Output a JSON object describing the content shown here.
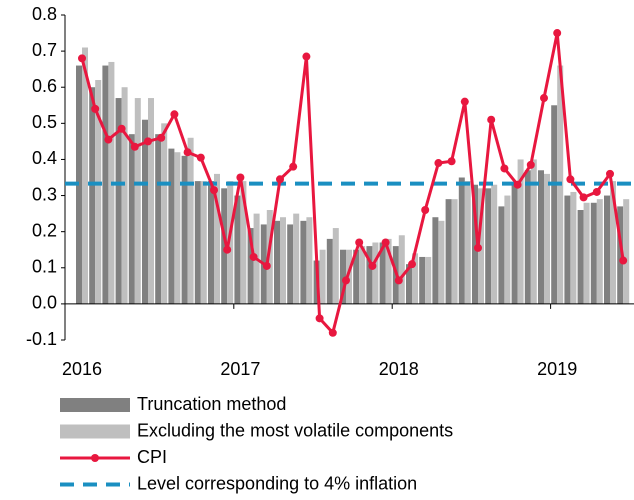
{
  "chart_data": {
    "type": "bar_line",
    "categories": [
      "2016",
      null,
      null,
      null,
      null,
      null,
      null,
      null,
      null,
      null,
      null,
      null,
      "2017",
      null,
      null,
      null,
      null,
      null,
      null,
      null,
      null,
      null,
      null,
      null,
      "2018",
      null,
      null,
      null,
      null,
      null,
      null,
      null,
      null,
      null,
      null,
      null,
      "2019",
      null,
      null,
      null,
      null,
      null
    ],
    "series": [
      {
        "name": "Truncation method",
        "type": "bar",
        "color": "#808080",
        "values": [
          0.66,
          0.6,
          0.66,
          0.57,
          0.47,
          0.51,
          0.47,
          0.43,
          0.41,
          0.34,
          0.34,
          0.32,
          0.3,
          0.21,
          0.22,
          0.23,
          0.22,
          0.23,
          0.12,
          0.18,
          0.15,
          0.15,
          0.16,
          0.17,
          0.16,
          0.11,
          0.13,
          0.24,
          0.29,
          0.35,
          0.33,
          0.32,
          0.27,
          0.33,
          0.37,
          0.37,
          0.55,
          0.3,
          0.26,
          0.28,
          0.3,
          0.27
        ]
      },
      {
        "name": "Excluding the most volatile components",
        "type": "bar",
        "color": "#bfbfbf",
        "values": [
          0.71,
          0.62,
          0.67,
          0.6,
          0.57,
          0.57,
          0.5,
          0.42,
          0.46,
          0.34,
          0.36,
          0.34,
          0.34,
          0.25,
          0.26,
          0.24,
          0.25,
          0.24,
          0.15,
          0.21,
          0.15,
          0.16,
          0.17,
          0.18,
          0.19,
          0.14,
          0.13,
          0.23,
          0.29,
          0.34,
          0.32,
          0.33,
          0.3,
          0.4,
          0.4,
          0.36,
          0.66,
          0.31,
          0.28,
          0.29,
          0.34,
          0.29
        ]
      },
      {
        "name": "CPI",
        "type": "line",
        "color": "#e8173f",
        "values": [
          0.68,
          0.54,
          0.455,
          0.485,
          0.435,
          0.45,
          0.46,
          0.525,
          0.42,
          0.405,
          0.315,
          0.15,
          0.35,
          0.13,
          0.105,
          0.345,
          0.38,
          0.685,
          -0.04,
          -0.08,
          0.065,
          0.17,
          0.105,
          0.17,
          0.065,
          0.11,
          0.26,
          0.39,
          0.395,
          0.56,
          0.155,
          0.51,
          0.375,
          0.33,
          0.385,
          0.57,
          0.75,
          0.345,
          0.295,
          0.31,
          0.36,
          0.12
        ]
      }
    ],
    "reference_line": {
      "name": "Level corresponding to 4% inflation",
      "color": "#1a8fc1",
      "value": 0.333
    },
    "ylim": [
      -0.1,
      0.8
    ],
    "yticks": [
      -0.1,
      {
        "value": 0,
        "label": "0.0"
      },
      0.1,
      0.2,
      0.3,
      0.4,
      0.5,
      0.6,
      0.7,
      0.8
    ],
    "legend": "bottom"
  }
}
